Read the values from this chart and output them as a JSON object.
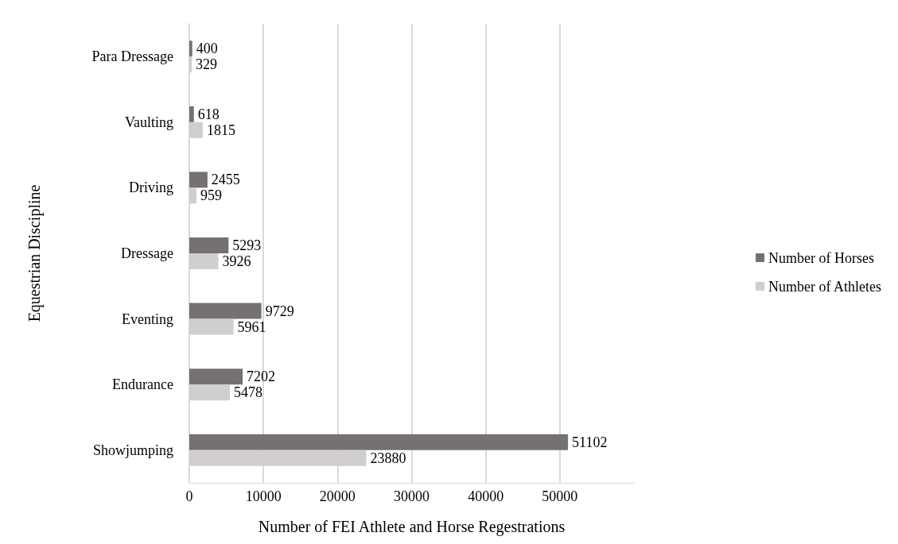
{
  "chart_data": {
    "type": "bar",
    "orientation": "horizontal",
    "xlabel": "Number of FEI Athlete and Horse Regestrations",
    "ylabel": "Equestrian Discipline",
    "categories": [
      "Para Dressage",
      "Vaulting",
      "Driving",
      "Dressage",
      "Eventing",
      "Endurance",
      "Showjumping"
    ],
    "series": [
      {
        "name": "Number of Horses",
        "color": "#767171",
        "values": [
          400,
          618,
          2455,
          5293,
          9729,
          7202,
          51102
        ]
      },
      {
        "name": "Number of Athletes",
        "color": "#d0cece",
        "values": [
          329,
          1815,
          959,
          3926,
          5961,
          5478,
          23880
        ]
      }
    ],
    "xlim": [
      0,
      60000
    ],
    "xticks": [
      0,
      10000,
      20000,
      30000,
      40000,
      50000
    ],
    "grid": "x",
    "legend": "right",
    "data_labels": true
  }
}
